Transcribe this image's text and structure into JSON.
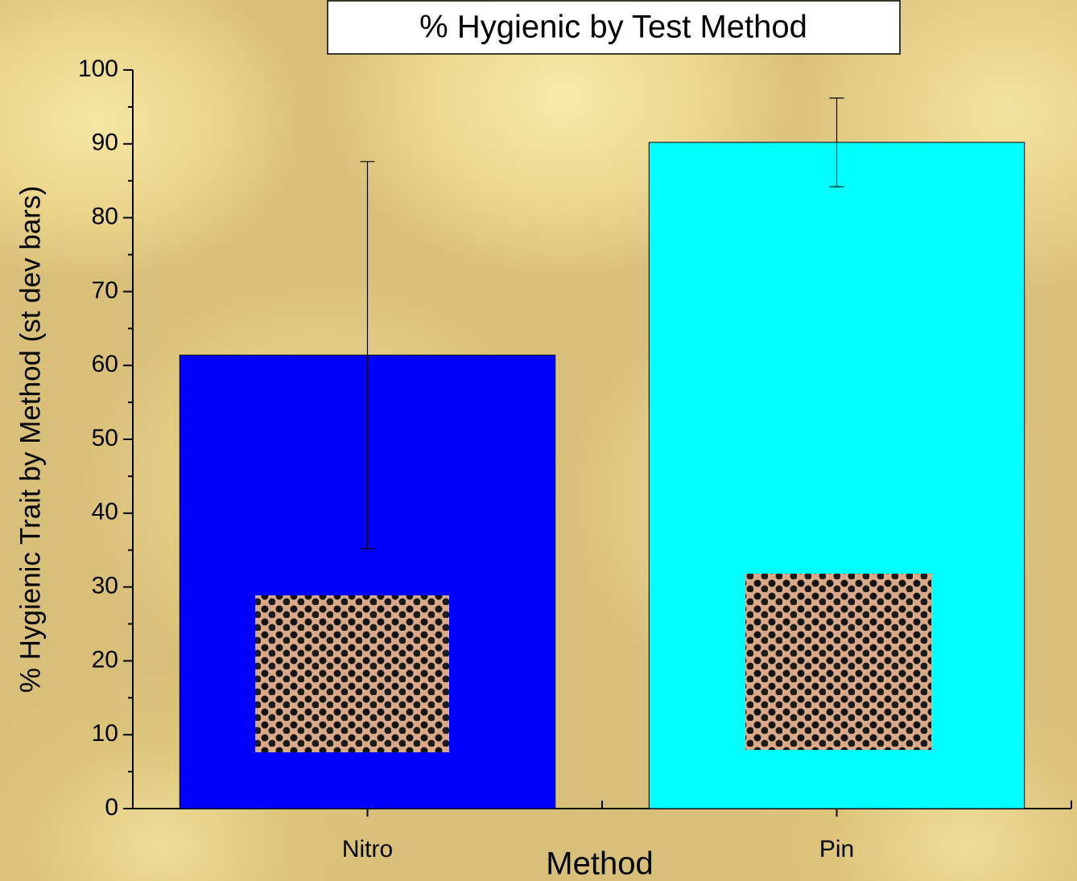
{
  "chart_data": {
    "type": "bar",
    "title": "% Hygienic by Test Method",
    "x_label": "Method",
    "y_label": "% Hygienic Trait by Method (st dev bars)",
    "categories": [
      "Nitro",
      "Pin"
    ],
    "series": [
      {
        "name": "% Hygienic",
        "colors": [
          "#0000ff",
          "#00ffff"
        ],
        "values": [
          61.4,
          90.2
        ],
        "errors": [
          26.2,
          6.0
        ]
      }
    ],
    "ylim": [
      0,
      100
    ],
    "yticks": [
      0,
      10,
      20,
      30,
      40,
      50,
      60,
      70,
      80,
      90,
      100
    ],
    "grid": false
  }
}
